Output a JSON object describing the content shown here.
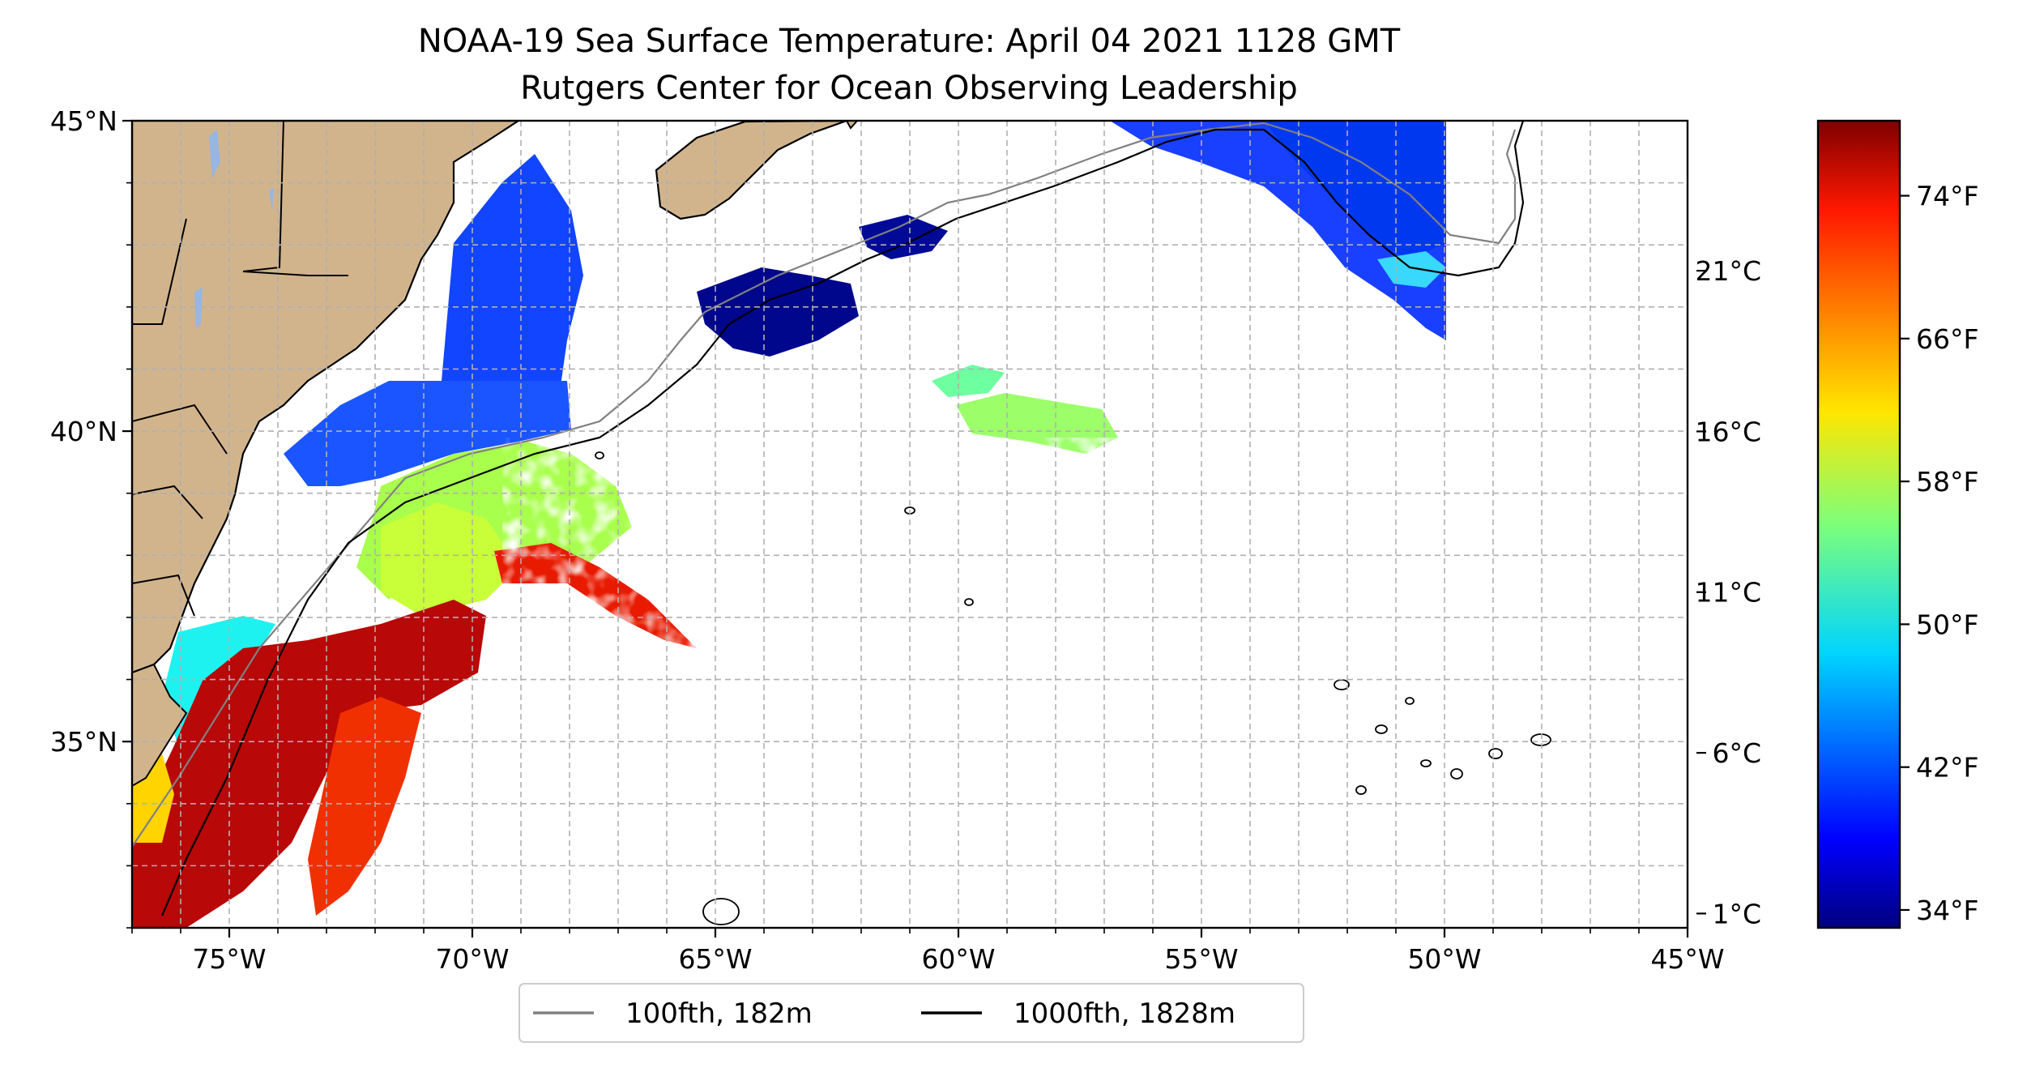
{
  "title": {
    "line1": "NOAA-19 Sea Surface Temperature: April 04 2021 1128 GMT",
    "line2": "Rutgers Center for Ocean Observing Leadership"
  },
  "map": {
    "lon_range": [
      -77,
      -45
    ],
    "lat_range": [
      32,
      45
    ],
    "lon_ticks": [
      {
        "value": -75,
        "label": "75°W"
      },
      {
        "value": -70,
        "label": "70°W"
      },
      {
        "value": -65,
        "label": "65°W"
      },
      {
        "value": -60,
        "label": "60°W"
      },
      {
        "value": -55,
        "label": "55°W"
      },
      {
        "value": -50,
        "label": "50°W"
      },
      {
        "value": -45,
        "label": "45°W"
      }
    ],
    "lat_ticks": [
      {
        "value": 45,
        "label": "45°N"
      },
      {
        "value": 40,
        "label": "40°N"
      },
      {
        "value": 35,
        "label": "35°N"
      }
    ],
    "grid": true,
    "land_color": "#d2b48c",
    "lake_color": "#97b6e1"
  },
  "colorbar": {
    "colormap": "jet",
    "celsius_ticks": [
      {
        "value": 21,
        "label": "21°C"
      },
      {
        "value": 16,
        "label": "16°C"
      },
      {
        "value": 11,
        "label": "11°C"
      },
      {
        "value": 6,
        "label": "6°C"
      },
      {
        "value": 1,
        "label": "1°C"
      }
    ],
    "fahrenheit_ticks": [
      {
        "value": 74,
        "label": "74°F"
      },
      {
        "value": 66,
        "label": "66°F"
      },
      {
        "value": 58,
        "label": "58°F"
      },
      {
        "value": 50,
        "label": "50°F"
      },
      {
        "value": 42,
        "label": "42°F"
      },
      {
        "value": 34,
        "label": "34°F"
      }
    ]
  },
  "legend": {
    "items": [
      {
        "label": "100fth, 182m",
        "color": "#808080"
      },
      {
        "label": "1000fth, 1828m",
        "color": "#000000"
      }
    ]
  },
  "colors": {
    "cold": "#00007f",
    "cool": "#0060ff",
    "mild": "#00e0ff",
    "temperate": "#80ff80",
    "warm": "#ffd000",
    "hot": "#ff5000",
    "very_hot": "#b00000"
  }
}
